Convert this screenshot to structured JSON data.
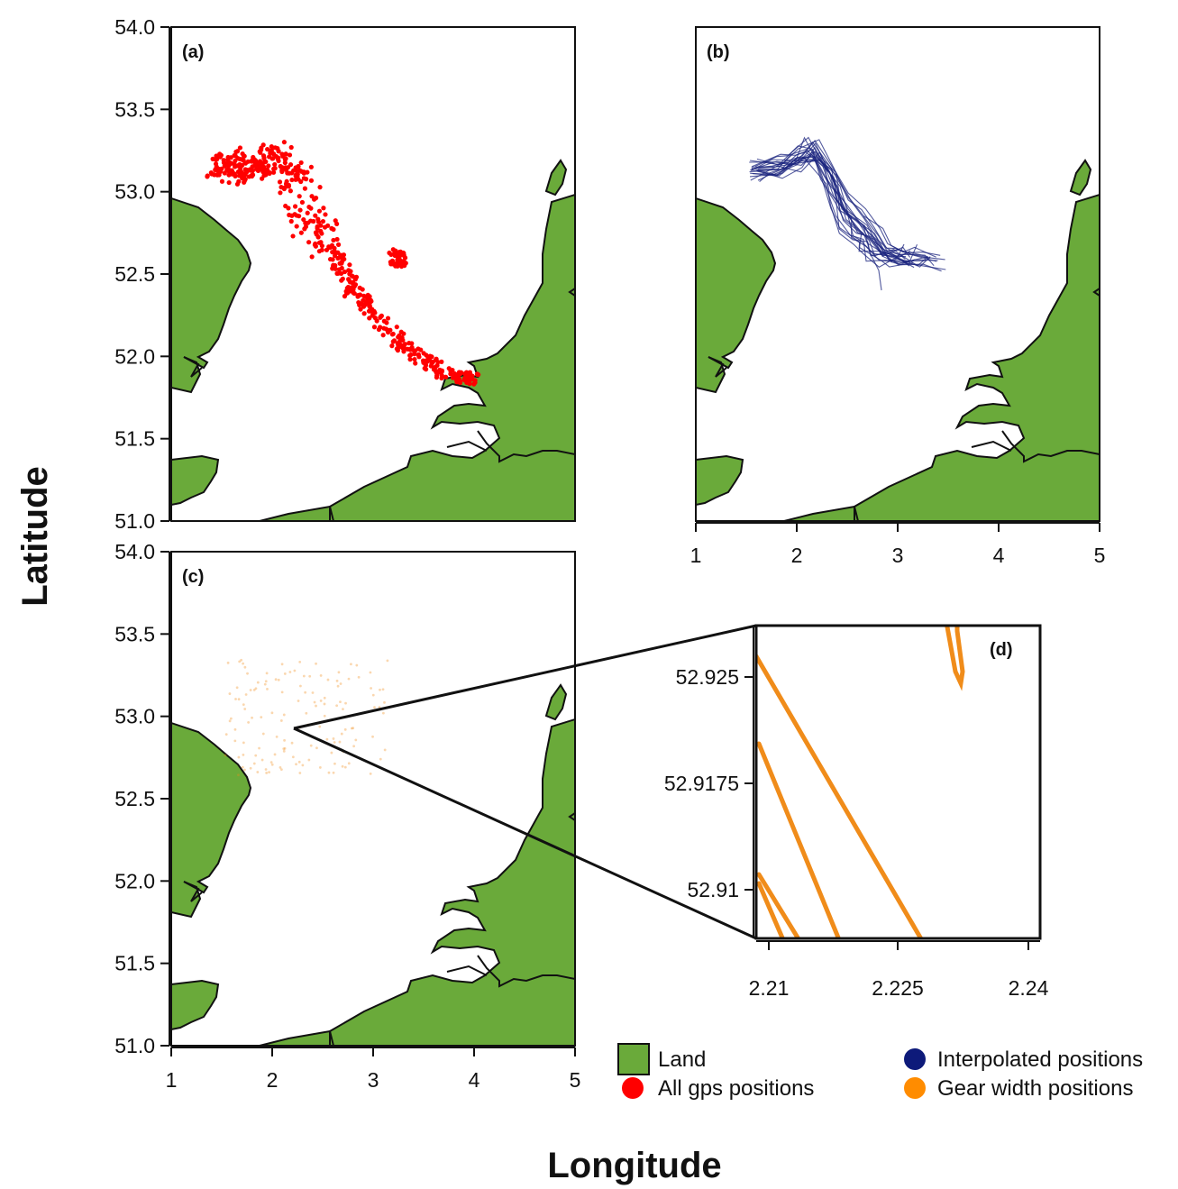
{
  "figure": {
    "x_axis_title": "Longitude",
    "y_axis_title": "Latitude"
  },
  "map_panels": [
    {
      "id": "a",
      "label": "(a)",
      "layer": "All gps positions"
    },
    {
      "id": "b",
      "label": "(b)",
      "layer": "Interpolated positions"
    },
    {
      "id": "c",
      "label": "(c)",
      "layer": "Gear width positions"
    }
  ],
  "map_axes": {
    "lon_ticks": [
      "1",
      "2",
      "3",
      "4",
      "5"
    ],
    "lat_ticks": [
      "51.0",
      "51.5",
      "52.0",
      "52.5",
      "53.0",
      "53.5",
      "54.0"
    ]
  },
  "inset": {
    "label": "(d)",
    "lon_ticks": [
      "2.21",
      "2.225",
      "2.24"
    ],
    "lat_ticks": [
      "52.91",
      "52.9175",
      "52.925"
    ],
    "zoom_point": {
      "lon": 2.22,
      "lat": 52.92
    }
  },
  "legend": {
    "items": [
      {
        "label": "Land",
        "color": "#6aaa3a",
        "symbol": "square"
      },
      {
        "label": "All gps positions",
        "color": "#ff0000",
        "symbol": "circle"
      },
      {
        "label": "Interpolated positions",
        "color": "#0d1a7a",
        "symbol": "circle"
      },
      {
        "label": "Gear width positions",
        "color": "#ff8c00",
        "symbol": "circle"
      }
    ]
  },
  "colors": {
    "land": "#6aaa3a",
    "gps": "#ff0000",
    "interpolated": "#1a237e",
    "gear": "#f08c1a"
  }
}
